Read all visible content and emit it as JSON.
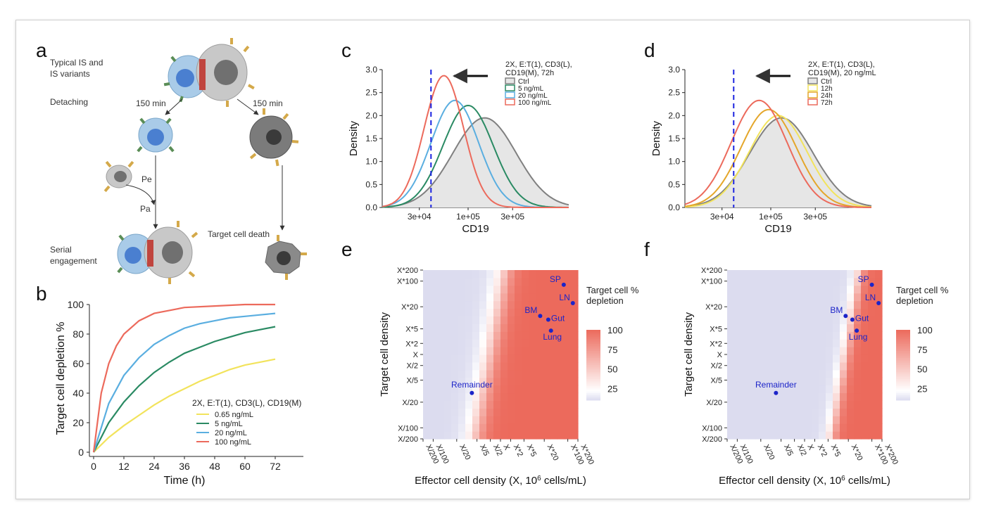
{
  "panel_letters": [
    "a",
    "b",
    "c",
    "d",
    "e",
    "f"
  ],
  "diagram": {
    "labels": {
      "typical": "Typical IS  and",
      "variants": "IS variants",
      "detaching": "Detaching",
      "t150a": "150 min",
      "t150b": "150 min",
      "pe": "Pe",
      "pa": "Pa",
      "serial1": "Serial",
      "serial2": "engagement",
      "death": "Target cell death"
    }
  },
  "chart_data": [
    {
      "id": "b",
      "type": "line",
      "xlabel": "Time (h)",
      "ylabel": "Target cell depletion %",
      "xlim": [
        0,
        72
      ],
      "ylim": [
        0,
        100
      ],
      "xticks": [
        0,
        12,
        24,
        36,
        48,
        60,
        72
      ],
      "yticks": [
        0,
        20,
        40,
        60,
        80,
        100
      ],
      "legend_title": "2X, E:T(1), CD3(L), CD19(M)",
      "legend_position": "bottom-right",
      "series": [
        {
          "name": "0.65 ng/mL",
          "color": "#f2e35c",
          "x": [
            0,
            6,
            12,
            18,
            24,
            30,
            36,
            42,
            48,
            54,
            60,
            66,
            72
          ],
          "y": [
            0,
            10,
            18,
            25,
            32,
            38,
            43,
            48,
            52,
            56,
            59,
            61,
            63
          ]
        },
        {
          "name": "5 ng/mL",
          "color": "#2a8a63",
          "x": [
            0,
            6,
            12,
            18,
            24,
            30,
            36,
            42,
            48,
            54,
            60,
            66,
            72
          ],
          "y": [
            0,
            20,
            34,
            45,
            54,
            61,
            67,
            71,
            75,
            78,
            81,
            83,
            85
          ]
        },
        {
          "name": "20 ng/mL",
          "color": "#5aaee0",
          "x": [
            0,
            6,
            12,
            18,
            24,
            30,
            36,
            42,
            48,
            54,
            60,
            66,
            72
          ],
          "y": [
            0,
            33,
            52,
            64,
            73,
            79,
            84,
            87,
            89,
            91,
            92,
            93,
            94
          ]
        },
        {
          "name": "100 ng/mL",
          "color": "#ec6a5c",
          "x": [
            0,
            3,
            6,
            9,
            12,
            18,
            24,
            30,
            36,
            48,
            60,
            72
          ],
          "y": [
            0,
            40,
            60,
            72,
            80,
            89,
            94,
            96,
            98,
            99,
            100,
            100
          ]
        }
      ]
    },
    {
      "id": "c",
      "type": "area",
      "xlabel": "CD19",
      "ylabel": "Density",
      "x_scale": "log",
      "xlim": [
        12000,
        1200000
      ],
      "ylim": [
        0,
        3.0
      ],
      "xticks": [
        30000,
        100000,
        300000
      ],
      "xtick_labels": [
        "3e+04",
        "1e+05",
        "3e+05"
      ],
      "yticks": [
        0,
        0.5,
        1.0,
        1.5,
        2.0,
        2.5,
        3.0
      ],
      "ytick_labels": [
        "0.0",
        "0.5",
        "1.0",
        "1.5",
        "2.0",
        "2.5",
        "3.0"
      ],
      "threshold_x": 40000,
      "legend_title_lines": [
        "2X, E:T(1), CD3(L),",
        "CD19(M), 72h"
      ],
      "legend_position": "top-right",
      "series": [
        {
          "name": "Ctrl",
          "color": "#808080",
          "fill": "#e6e6e6",
          "mu": 150000,
          "sd": 0.34,
          "peak": 1.95
        },
        {
          "name": "5 ng/mL",
          "color": "#2a8a63",
          "mu": 100000,
          "sd": 0.27,
          "peak": 2.22
        },
        {
          "name": "20 ng/mL",
          "color": "#5aaee0",
          "mu": 72000,
          "sd": 0.255,
          "peak": 2.33
        },
        {
          "name": "100 ng/mL",
          "color": "#ec6a5c",
          "mu": 55000,
          "sd": 0.21,
          "peak": 2.87
        }
      ]
    },
    {
      "id": "d",
      "type": "area",
      "xlabel": "CD19",
      "ylabel": "Density",
      "x_scale": "log",
      "xlim": [
        12000,
        1200000
      ],
      "ylim": [
        0,
        3.0
      ],
      "xticks": [
        30000,
        100000,
        300000
      ],
      "xtick_labels": [
        "3e+04",
        "1e+05",
        "3e+05"
      ],
      "yticks": [
        0,
        0.5,
        1.0,
        1.5,
        2.0,
        2.5,
        3.0
      ],
      "ytick_labels": [
        "0.0",
        "0.5",
        "1.0",
        "1.5",
        "2.0",
        "2.5",
        "3.0"
      ],
      "threshold_x": 40000,
      "legend_title_lines": [
        "2X, E:T(1), CD3(L),",
        "CD19(M), 20 ng/mL"
      ],
      "legend_position": "top-right",
      "series": [
        {
          "name": "Ctrl",
          "color": "#808080",
          "fill": "#e6e6e6",
          "mu": 130000,
          "sd": 0.34,
          "peak": 1.95
        },
        {
          "name": "12h",
          "color": "#f2e35c",
          "mu": 120000,
          "sd": 0.31,
          "peak": 2.0
        },
        {
          "name": "24h",
          "color": "#e4a62a",
          "mu": 95000,
          "sd": 0.3,
          "peak": 2.13
        },
        {
          "name": "72h",
          "color": "#ec6a5c",
          "mu": 75000,
          "sd": 0.3,
          "peak": 2.33
        }
      ]
    },
    {
      "id": "e",
      "type": "heatmap",
      "xlabel_prefix": "Effector cell density (X, 10",
      "xlabel_sup": "6",
      "xlabel_suffix": " cells/mL)",
      "ylabel": "Target cell density",
      "xtick_labels": [
        "X/200",
        "X/100",
        "X/20",
        "X/5",
        "X/2",
        "X",
        "X*2",
        "X*5",
        "X*20",
        "X*100",
        "X*200"
      ],
      "ytick_labels": [
        "X/200",
        "X/100",
        "X/20",
        "X/5",
        "X/2",
        "X",
        "X*2",
        "X*5",
        "X*20",
        "X*100",
        "X*200"
      ],
      "legend_title_lines": [
        "Target cell %",
        "depletion"
      ],
      "legend_ticks": [
        100,
        75,
        50,
        25
      ],
      "legend_range": [
        10,
        100
      ],
      "color_low": "#dcdcef",
      "color_mid": "#ffffff",
      "color_high": "#ec6a5c",
      "midpoint": 22,
      "transition_x": [
        -0.75,
        0.9
      ],
      "transition_width": 0.5,
      "points": [
        {
          "label": "SP",
          "x": 1.88,
          "y": 1.9
        },
        {
          "label": "LN",
          "x": 2.15,
          "y": 1.4
        },
        {
          "label": "BM",
          "x": 1.18,
          "y": 1.05
        },
        {
          "label": "Gut",
          "x": 1.42,
          "y": 0.95
        },
        {
          "label": "Lung",
          "x": 1.5,
          "y": 0.65
        },
        {
          "label": "Remainder",
          "x": -0.85,
          "y": -1.05
        }
      ],
      "point_color": "#1c24c8"
    },
    {
      "id": "f",
      "type": "heatmap",
      "xlabel_prefix": "Effector cell density (X, 10",
      "xlabel_sup": "6",
      "xlabel_suffix": " cells/mL)",
      "ylabel": "Target cell density",
      "xtick_labels": [
        "X/200",
        "X/100",
        "X/20",
        "X/5",
        "X/2",
        "X",
        "X*2",
        "X*5",
        "X*20",
        "X*100",
        "X*200"
      ],
      "ytick_labels": [
        "X/200",
        "X/100",
        "X/20",
        "X/5",
        "X/2",
        "X",
        "X*2",
        "X*5",
        "X*20",
        "X*100",
        "X*200"
      ],
      "legend_title_lines": [
        "Target cell %",
        "depletion"
      ],
      "legend_ticks": [
        100,
        75,
        50,
        25
      ],
      "legend_range": [
        10,
        100
      ],
      "color_low": "#dcdcef",
      "color_mid": "#ffffff",
      "color_high": "#ec6a5c",
      "midpoint": 22,
      "transition_x": [
        0.8,
        0.85
      ],
      "transition_width": 0.3,
      "points": [
        {
          "label": "SP",
          "x": 2.0,
          "y": 1.9
        },
        {
          "label": "LN",
          "x": 2.2,
          "y": 1.4
        },
        {
          "label": "BM",
          "x": 1.22,
          "y": 1.05
        },
        {
          "label": "Gut",
          "x": 1.42,
          "y": 0.95
        },
        {
          "label": "Lung",
          "x": 1.55,
          "y": 0.65
        },
        {
          "label": "Remainder",
          "x": -0.85,
          "y": -1.05
        }
      ],
      "point_color": "#1c24c8"
    }
  ]
}
